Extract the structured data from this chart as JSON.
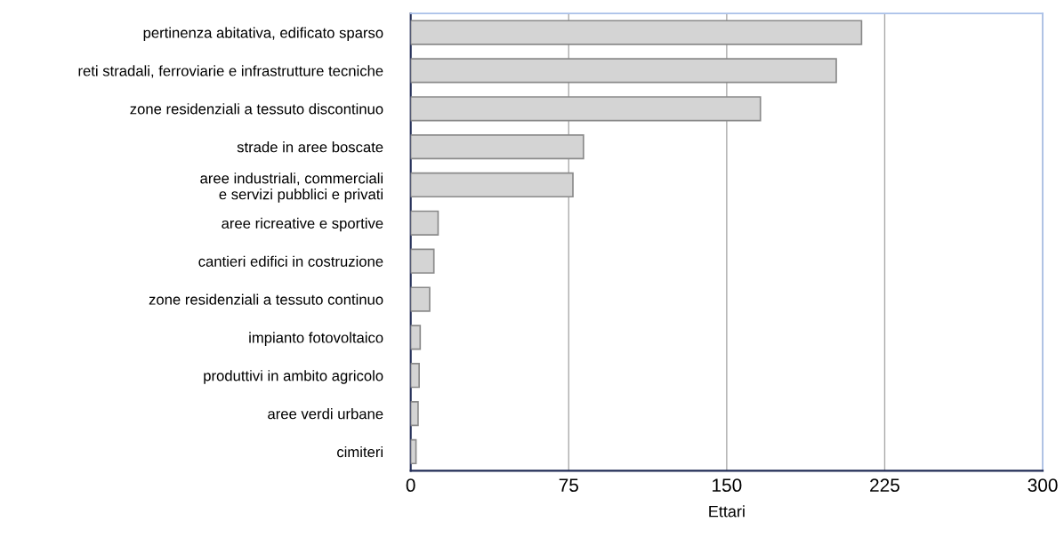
{
  "chart_data": {
    "type": "bar",
    "orientation": "horizontal",
    "xlabel": "Ettari",
    "categories": [
      "pertinenza abitativa, edificato sparso",
      "reti stradali, ferroviarie e infrastrutture tecniche",
      "zone residenziali a tessuto discontinuo",
      "strade in aree boscate",
      "aree industriali, commerciali\ne servizi pubblici e privati",
      "aree ricreative e sportive",
      "cantieri edifici in costruzione",
      "zone residenziali a tessuto continuo",
      "impianto fotovoltaico",
      "produttivi in ambito agricolo",
      "aree verdi urbane",
      "cimiteri"
    ],
    "values": [
      214,
      202,
      166,
      82,
      77,
      13,
      11,
      9,
      4.5,
      4,
      3.5,
      2.5
    ],
    "color": "#d4d4d4",
    "xlim": [
      0,
      300
    ],
    "xticks": [
      0,
      75,
      150,
      225,
      300
    ],
    "grid": "x"
  }
}
